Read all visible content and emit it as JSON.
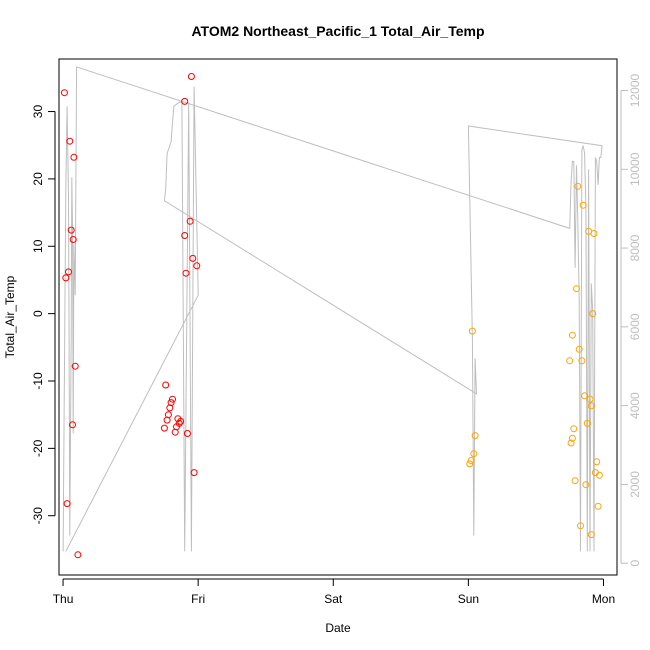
{
  "chart_data": {
    "type": "scatter",
    "title": "ATOM2 Northeast_Pacific_1 Total_Air_Temp",
    "xlabel": "Date",
    "ylabel": "Total_Air_Temp",
    "x_ticks": [
      "Thu",
      "Fri",
      "Sat",
      "Sun",
      "Mon"
    ],
    "xlim": [
      -0.03,
      4.1
    ],
    "ylim": [
      -38.8,
      37.8
    ],
    "y_ticks": [
      -30,
      -20,
      -10,
      0,
      10,
      20,
      30
    ],
    "y2lim": [
      -300,
      12800
    ],
    "y2_ticks": [
      0,
      2000,
      4000,
      6000,
      8000,
      10000,
      12000
    ],
    "grid": false,
    "colors": {
      "red_points": "#ff0000",
      "orange_points": "#ffa500",
      "line": "#bebebe",
      "axes": "#000000"
    },
    "series": [
      {
        "color": "#ff0000",
        "marker": "circle-open",
        "points": [
          [
            0.01,
            32.8
          ],
          [
            0.02,
            5.3
          ],
          [
            0.03,
            -28.2
          ],
          [
            0.04,
            6.2
          ],
          [
            0.05,
            25.6
          ],
          [
            0.06,
            12.4
          ],
          [
            0.07,
            -16.5
          ],
          [
            0.075,
            11.0
          ],
          [
            0.08,
            23.2
          ],
          [
            0.09,
            -7.8
          ],
          [
            0.11,
            -35.8
          ],
          [
            0.75,
            -17.0
          ],
          [
            0.76,
            -10.6
          ],
          [
            0.77,
            -15.8
          ],
          [
            0.78,
            -15.0
          ],
          [
            0.79,
            -14.0
          ],
          [
            0.8,
            -13.2
          ],
          [
            0.81,
            -12.7
          ],
          [
            0.83,
            -17.6
          ],
          [
            0.84,
            -16.8
          ],
          [
            0.85,
            -15.6
          ],
          [
            0.86,
            -16.3
          ],
          [
            0.87,
            -16.0
          ],
          [
            0.9,
            31.5
          ],
          [
            0.9,
            11.6
          ],
          [
            0.91,
            6.0
          ],
          [
            0.92,
            -17.8
          ],
          [
            0.94,
            13.7
          ],
          [
            0.95,
            35.2
          ],
          [
            0.96,
            8.2
          ],
          [
            0.97,
            -23.6
          ],
          [
            0.99,
            7.1
          ]
        ]
      },
      {
        "color": "#ffa500",
        "marker": "circle-open",
        "points": [
          [
            3.01,
            -22.3
          ],
          [
            3.02,
            -21.8
          ],
          [
            3.03,
            -2.6
          ],
          [
            3.04,
            -20.8
          ],
          [
            3.05,
            -18.1
          ],
          [
            3.75,
            -7.0
          ],
          [
            3.76,
            -19.2
          ],
          [
            3.77,
            -18.5
          ],
          [
            3.77,
            -3.2
          ],
          [
            3.78,
            -17.1
          ],
          [
            3.79,
            -24.8
          ],
          [
            3.8,
            3.7
          ],
          [
            3.81,
            18.9
          ],
          [
            3.82,
            -5.3
          ],
          [
            3.83,
            -31.5
          ],
          [
            3.84,
            -7.0
          ],
          [
            3.85,
            16.1
          ],
          [
            3.86,
            -12.2
          ],
          [
            3.87,
            -25.4
          ],
          [
            3.88,
            -16.3
          ],
          [
            3.89,
            12.2
          ],
          [
            3.9,
            -12.7
          ],
          [
            3.91,
            -13.7
          ],
          [
            3.91,
            -32.8
          ],
          [
            3.92,
            0.0
          ],
          [
            3.93,
            11.9
          ],
          [
            3.94,
            -23.6
          ],
          [
            3.95,
            -22.0
          ],
          [
            3.96,
            -28.6
          ],
          [
            3.97,
            -24.0
          ]
        ]
      }
    ],
    "line_series": {
      "color": "#bebebe",
      "axis": "right",
      "points": [
        [
          0.0,
          300
        ],
        [
          0.02,
          9500
        ],
        [
          0.03,
          11600
        ],
        [
          0.04,
          9300
        ],
        [
          0.045,
          5500
        ],
        [
          0.05,
          700
        ],
        [
          0.06,
          5800
        ],
        [
          0.065,
          9800
        ],
        [
          0.07,
          8600
        ],
        [
          0.075,
          3300
        ],
        [
          0.08,
          8100
        ],
        [
          0.09,
          6800
        ],
        [
          0.1,
          12600
        ],
        [
          3.75,
          8500
        ],
        [
          3.76,
          9700
        ],
        [
          3.77,
          10200
        ],
        [
          3.78,
          10200
        ],
        [
          3.79,
          7500
        ],
        [
          3.8,
          10100
        ],
        [
          3.81,
          8700
        ],
        [
          3.82,
          6700
        ],
        [
          3.83,
          300
        ],
        [
          3.84,
          10500
        ],
        [
          3.85,
          10600
        ],
        [
          3.86,
          10400
        ],
        [
          3.87,
          9000
        ],
        [
          3.88,
          300
        ],
        [
          3.89,
          10000
        ],
        [
          3.9,
          300
        ],
        [
          3.91,
          7100
        ],
        [
          3.92,
          6400
        ],
        [
          3.93,
          300
        ],
        [
          3.94,
          10300
        ],
        [
          3.95,
          10200
        ],
        [
          3.96,
          9600
        ],
        [
          3.97,
          10300
        ],
        [
          3.98,
          10300
        ],
        [
          3.99,
          10600
        ],
        [
          3.0,
          11100
        ],
        [
          3.03,
          5700
        ],
        [
          3.04,
          700
        ],
        [
          3.05,
          5200
        ],
        [
          3.06,
          4300
        ],
        [
          0.75,
          9200
        ],
        [
          0.76,
          9500
        ],
        [
          0.77,
          10400
        ],
        [
          0.78,
          10500
        ],
        [
          0.8,
          10700
        ],
        [
          0.82,
          11600
        ],
        [
          0.86,
          11700
        ],
        [
          0.88,
          11700
        ],
        [
          0.9,
          300
        ],
        [
          0.93,
          11700
        ],
        [
          0.95,
          300
        ],
        [
          0.97,
          12100
        ],
        [
          1.0,
          6800
        ],
        [
          0.02,
          300
        ]
      ]
    }
  }
}
